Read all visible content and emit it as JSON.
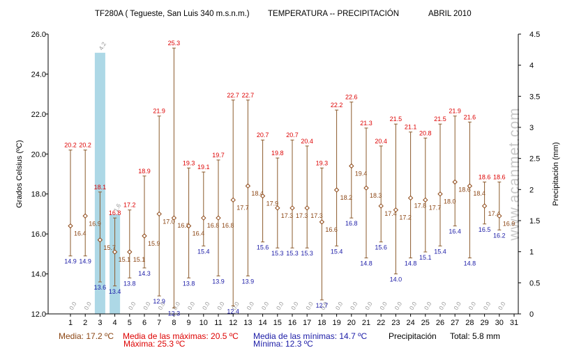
{
  "header": {
    "station": "TF280A ( Tegueste, San Luis 340 m.s.n.m.)",
    "variables": "TEMPERATURA -- PRECIPITACIÓN",
    "period": "ABRIL 2010"
  },
  "footer": {
    "media": "Media: 17.2 ºC",
    "maxima": "Máxima: 25.3 ºC",
    "media_maximas": "Media de las máximas: 20.5 ºC",
    "media_minimas": "Media de las mínimas: 14.7 ºC",
    "minima": "Mínima: 12.3 ºC",
    "precip_label": "Precipitación",
    "precip_total": "Total: 5.8 mm"
  },
  "watermark": "www.acanmet.com",
  "colors": {
    "max": "#dd0000",
    "min": "#1a1aa6",
    "mean": "#8b4513",
    "whisker": "#8b5a2b",
    "precip_bar": "#add8e6",
    "precip_text": "#999999",
    "watermark": "#c8c8c8"
  },
  "chart_data": {
    "type": "range-bar + bar",
    "ylabel": "Grados Celsius (ºC)",
    "y2label": "Precipitación (mm)",
    "ylim": [
      12.0,
      26.0
    ],
    "y2lim": [
      0,
      4.5
    ],
    "yticks": [
      "12.0",
      "14.0",
      "16.0",
      "18.0",
      "20.0",
      "22.0",
      "24.0",
      "26.0"
    ],
    "y2ticks": [
      "0",
      "0.5",
      "1",
      "1.5",
      "2",
      "2.5",
      "3",
      "3.5",
      "4",
      "4.5"
    ],
    "x_ticks": [
      "1",
      "2",
      "3",
      "4",
      "5",
      "6",
      "7",
      "8",
      "9",
      "10",
      "11",
      "12",
      "13",
      "14",
      "15",
      "16",
      "17",
      "18",
      "19",
      "20",
      "21",
      "22",
      "23",
      "24",
      "25",
      "26",
      "27",
      "28",
      "29",
      "30",
      "31"
    ],
    "days": [
      1,
      2,
      3,
      4,
      5,
      6,
      7,
      8,
      9,
      10,
      11,
      12,
      13,
      14,
      15,
      16,
      17,
      18,
      19,
      20,
      21,
      22,
      23,
      24,
      25,
      26,
      27,
      28,
      29,
      30
    ],
    "max": [
      20.2,
      20.2,
      18.1,
      16.8,
      17.2,
      18.9,
      21.9,
      25.3,
      19.3,
      19.1,
      19.7,
      22.7,
      22.7,
      20.7,
      19.8,
      20.7,
      20.4,
      19.3,
      22.2,
      22.6,
      21.3,
      20.4,
      21.5,
      21.1,
      20.8,
      21.5,
      21.9,
      21.6,
      18.6,
      18.6
    ],
    "min": [
      14.9,
      14.9,
      13.6,
      13.4,
      13.8,
      14.3,
      12.9,
      12.3,
      13.8,
      15.4,
      13.9,
      12.4,
      13.9,
      15.6,
      15.3,
      15.3,
      15.3,
      12.7,
      15.4,
      16.8,
      14.8,
      15.6,
      14.0,
      14.8,
      15.1,
      15.4,
      16.4,
      14.8,
      16.5,
      16.2
    ],
    "mean": [
      16.4,
      16.9,
      15.7,
      15.1,
      15.1,
      15.9,
      17.0,
      16.8,
      16.4,
      16.8,
      16.8,
      17.7,
      18.4,
      17.9,
      17.3,
      17.3,
      17.3,
      16.6,
      18.2,
      19.4,
      18.3,
      17.4,
      17.2,
      17.8,
      17.7,
      18.0,
      18.6,
      18.4,
      17.4,
      16.9
    ],
    "precip": [
      "0.0",
      "0.0",
      "4.2",
      "1.6",
      "0.0",
      "0.0",
      "0.0",
      "0.0",
      "0.0",
      "0.0",
      "0.0",
      "0.0",
      "0.0",
      "0.0",
      "0.0",
      "0.0",
      "0.0",
      "0.0",
      "0.0",
      "0.0",
      "0.0",
      "0.0",
      "0.0",
      "0.0",
      "0.0",
      "0.0",
      "0.0",
      "0.0",
      "0.0",
      "0.0"
    ]
  }
}
